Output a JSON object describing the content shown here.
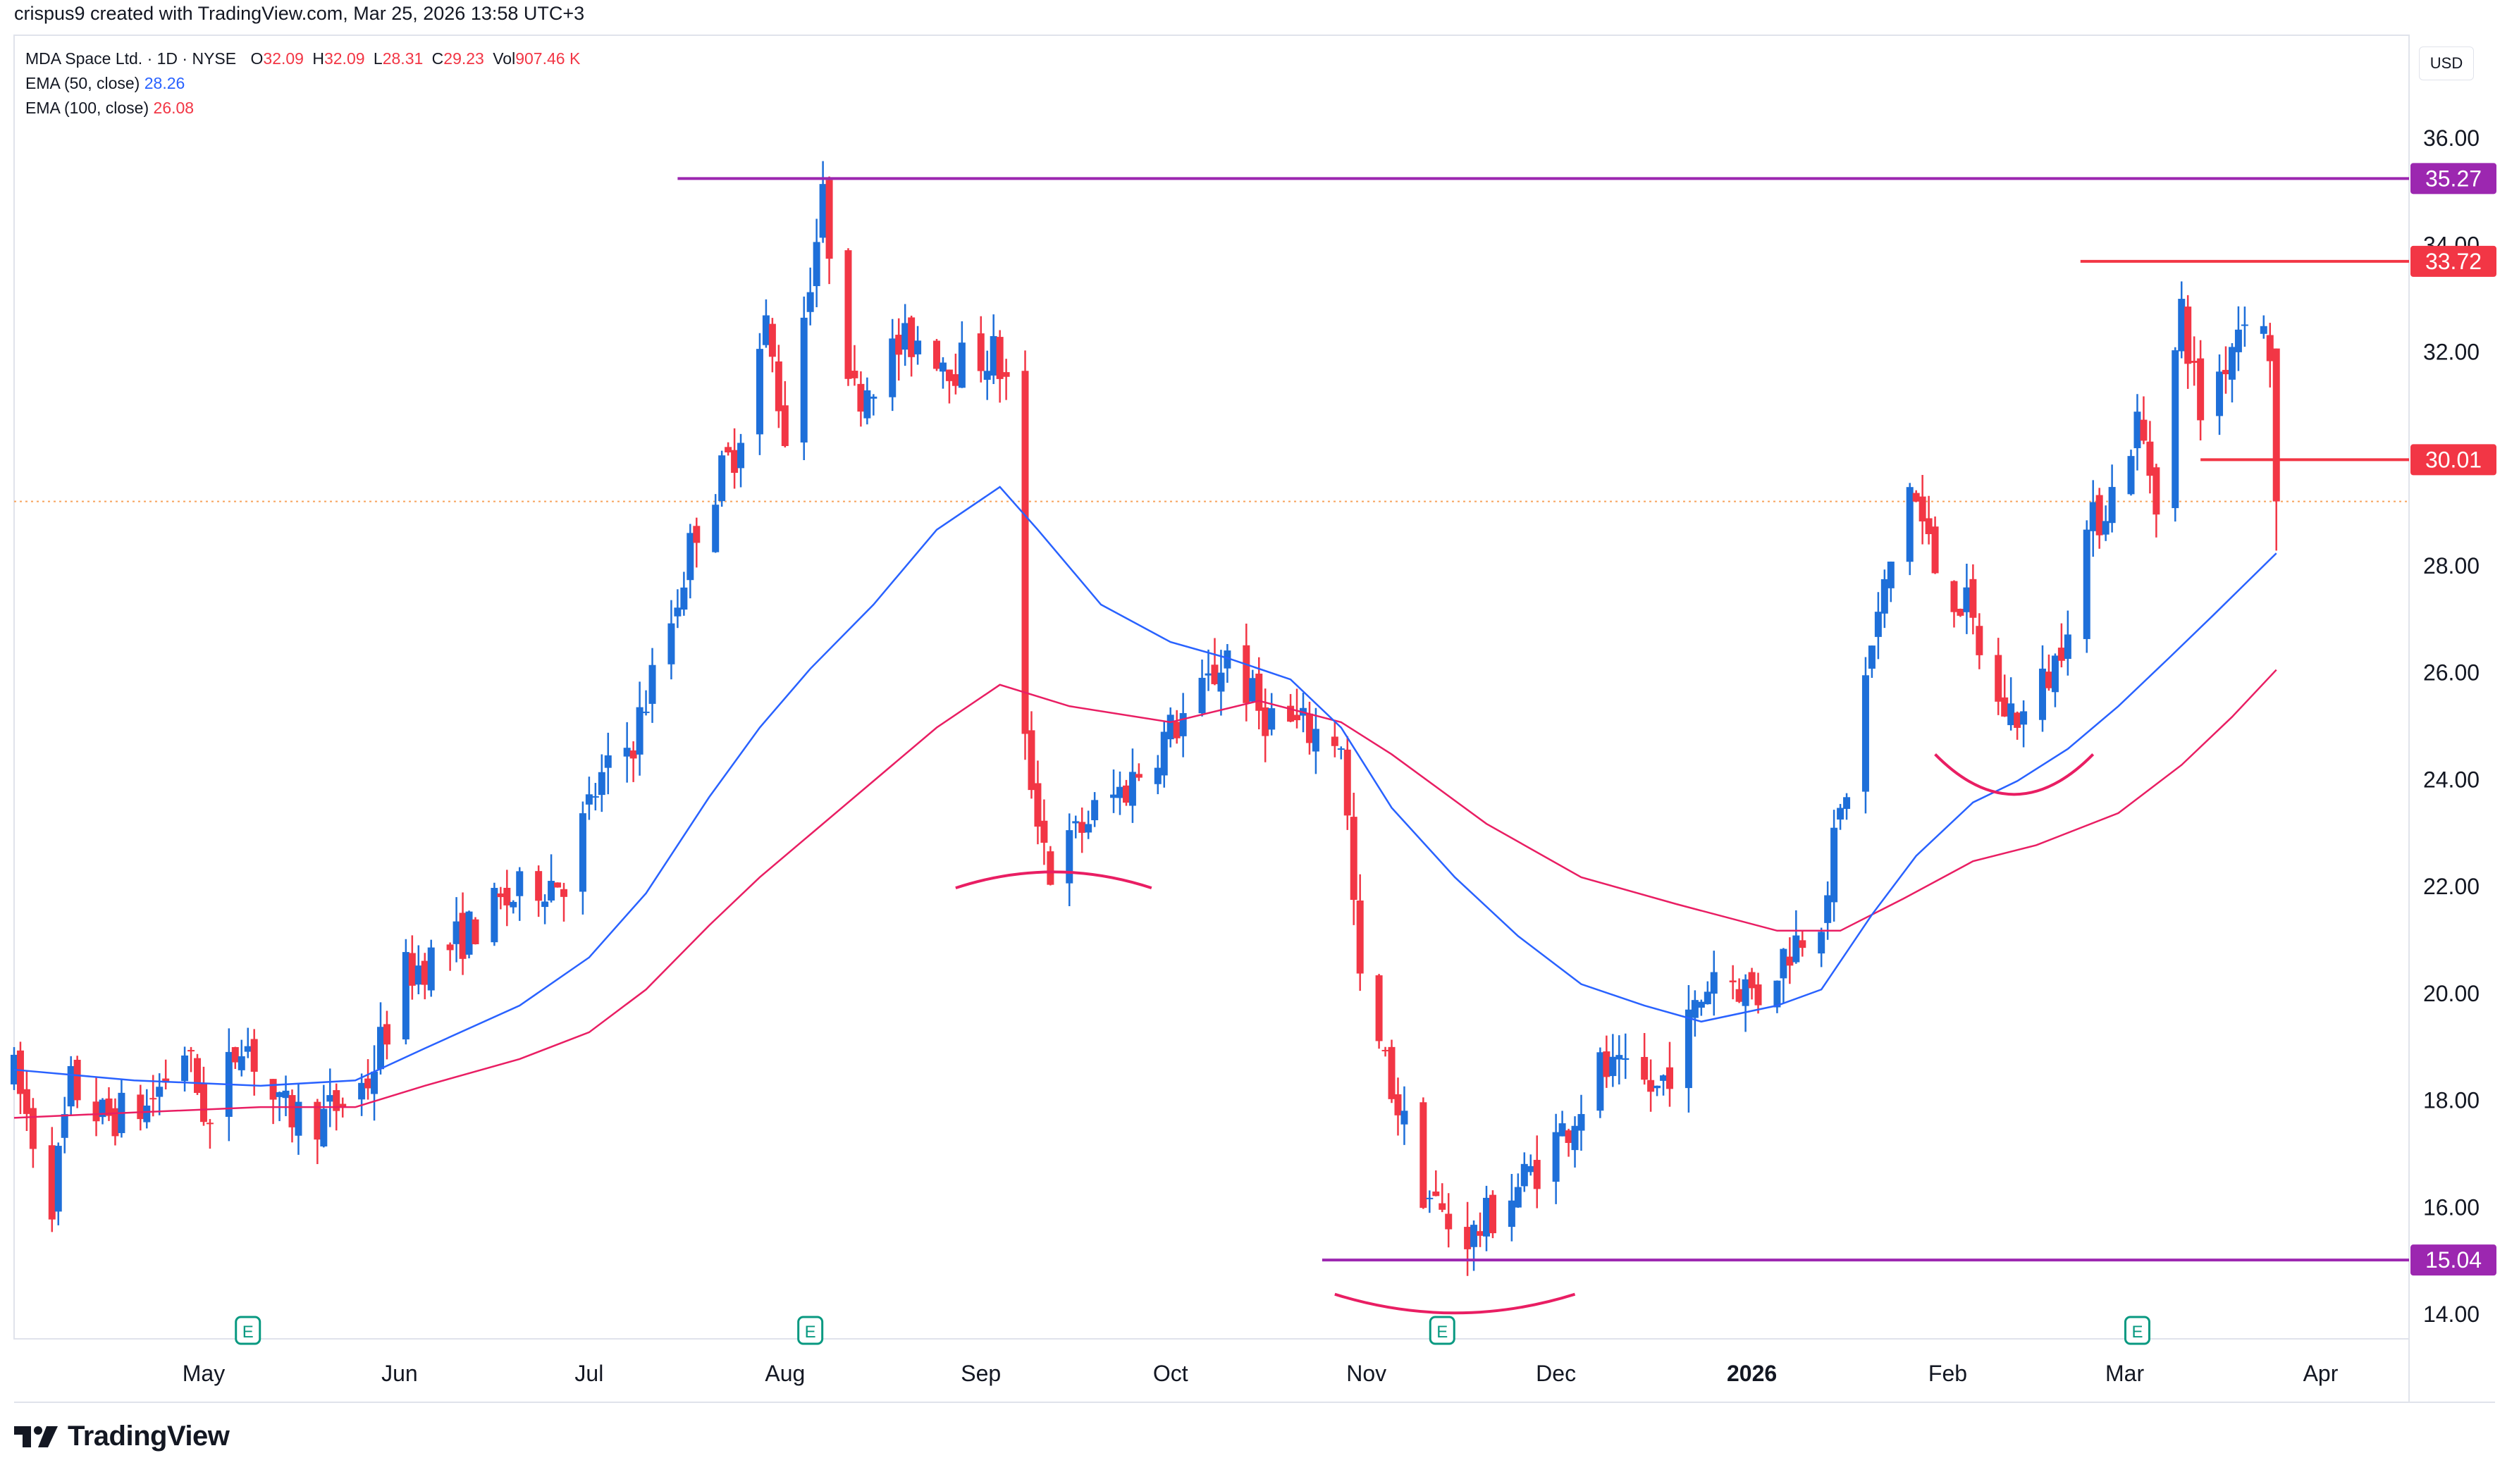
{
  "header": {
    "credit": "crispus9 created with TradingView.com, Mar 25, 2026 13:58 UTC+3",
    "symbol_line": "MDA Space Ltd. · 1D · NYSE",
    "ohlc": [
      {
        "k": "O",
        "v": "32.09"
      },
      {
        "k": "H",
        "v": "32.09"
      },
      {
        "k": "L",
        "v": "28.31"
      },
      {
        "k": "C",
        "v": "29.23"
      },
      {
        "k": "Vol",
        "v": "907.46 K"
      }
    ],
    "ema50_label": "EMA (50, close)",
    "ema50_value": "28.26",
    "ema100_label": "EMA (100, close)",
    "ema100_value": "26.08",
    "currency": "USD"
  },
  "brand": {
    "name": "TradingView"
  },
  "colors": {
    "up": "#1e6fd9",
    "down": "#f23645",
    "ema50": "#2962ff",
    "ema100": "#e91e63",
    "resistance": "#9c27b0",
    "level": "#f23645",
    "last_price": "#f7a35c"
  },
  "chart_data": {
    "type": "candlestick",
    "ylim": [
      13.0,
      37.0
    ],
    "yticks": [
      "14.00",
      "16.00",
      "18.00",
      "20.00",
      "22.00",
      "24.00",
      "26.00",
      "28.00",
      "30.00",
      "32.00",
      "34.00",
      "36.00"
    ],
    "xticks": [
      {
        "label": "May",
        "date": "2025-05-01"
      },
      {
        "label": "Jun",
        "date": "2025-06-01"
      },
      {
        "label": "Jul",
        "date": "2025-07-01"
      },
      {
        "label": "Aug",
        "date": "2025-08-01"
      },
      {
        "label": "Sep",
        "date": "2025-09-01"
      },
      {
        "label": "Oct",
        "date": "2025-10-01"
      },
      {
        "label": "Nov",
        "date": "2025-11-01"
      },
      {
        "label": "Dec",
        "date": "2025-12-01"
      },
      {
        "label": "2026",
        "date": "2026-01-01",
        "bold": true
      },
      {
        "label": "Feb",
        "date": "2026-02-01"
      },
      {
        "label": "Mar",
        "date": "2026-03-01"
      },
      {
        "label": "Apr",
        "date": "2026-04-01"
      }
    ],
    "last_price": 29.23,
    "price_levels": [
      {
        "value": 35.27,
        "label": "35.27",
        "color": "#9c27b0",
        "from": "2025-07-15"
      },
      {
        "value": 33.72,
        "label": "33.72",
        "color": "#f23645",
        "from": "2026-02-22"
      },
      {
        "value": 30.01,
        "label": "30.01",
        "color": "#f23645",
        "from": "2026-03-13"
      },
      {
        "value": 15.04,
        "label": "15.04",
        "color": "#9c27b0",
        "from": "2025-10-25"
      }
    ],
    "earnings_markers": [
      {
        "date": "2025-05-08",
        "label": "E"
      },
      {
        "date": "2025-08-05",
        "label": "E"
      },
      {
        "date": "2025-11-13",
        "label": "E"
      },
      {
        "date": "2026-03-03",
        "label": "E"
      }
    ],
    "arcs": [
      {
        "from": "2025-08-28",
        "to": "2025-09-28",
        "lowest": 22.3,
        "start": 22.0
      },
      {
        "from": "2025-10-27",
        "to": "2025-12-04",
        "lowest": 14.05,
        "start": 14.4
      },
      {
        "from": "2026-01-30",
        "to": "2026-02-24",
        "lowest": 23.75,
        "start": 24.5
      }
    ],
    "ema50": [
      [
        "2025-04-01",
        18.6
      ],
      [
        "2025-04-20",
        18.4
      ],
      [
        "2025-05-10",
        18.3
      ],
      [
        "2025-05-25",
        18.4
      ],
      [
        "2025-06-05",
        19.0
      ],
      [
        "2025-06-20",
        19.8
      ],
      [
        "2025-07-01",
        20.7
      ],
      [
        "2025-07-10",
        21.9
      ],
      [
        "2025-07-20",
        23.7
      ],
      [
        "2025-07-28",
        25.0
      ],
      [
        "2025-08-05",
        26.1
      ],
      [
        "2025-08-15",
        27.3
      ],
      [
        "2025-08-25",
        28.7
      ],
      [
        "2025-09-04",
        29.5
      ],
      [
        "2025-09-10",
        28.7
      ],
      [
        "2025-09-20",
        27.3
      ],
      [
        "2025-10-01",
        26.6
      ],
      [
        "2025-10-10",
        26.3
      ],
      [
        "2025-10-20",
        25.9
      ],
      [
        "2025-10-28",
        25.0
      ],
      [
        "2025-11-05",
        23.5
      ],
      [
        "2025-11-15",
        22.2
      ],
      [
        "2025-11-25",
        21.1
      ],
      [
        "2025-12-05",
        20.2
      ],
      [
        "2025-12-15",
        19.8
      ],
      [
        "2025-12-24",
        19.5
      ],
      [
        "2026-01-05",
        19.8
      ],
      [
        "2026-01-12",
        20.1
      ],
      [
        "2026-01-20",
        21.5
      ],
      [
        "2026-01-27",
        22.6
      ],
      [
        "2026-02-05",
        23.6
      ],
      [
        "2026-02-12",
        24.0
      ],
      [
        "2026-02-20",
        24.6
      ],
      [
        "2026-02-28",
        25.4
      ],
      [
        "2026-03-08",
        26.3
      ],
      [
        "2026-03-15",
        27.1
      ],
      [
        "2026-03-25",
        28.26
      ]
    ],
    "ema100": [
      [
        "2025-04-01",
        17.7
      ],
      [
        "2025-04-20",
        17.8
      ],
      [
        "2025-05-10",
        17.9
      ],
      [
        "2025-05-25",
        17.9
      ],
      [
        "2025-06-05",
        18.3
      ],
      [
        "2025-06-20",
        18.8
      ],
      [
        "2025-07-01",
        19.3
      ],
      [
        "2025-07-10",
        20.1
      ],
      [
        "2025-07-20",
        21.3
      ],
      [
        "2025-07-28",
        22.2
      ],
      [
        "2025-08-05",
        23.0
      ],
      [
        "2025-08-15",
        24.0
      ],
      [
        "2025-08-25",
        25.0
      ],
      [
        "2025-09-04",
        25.8
      ],
      [
        "2025-09-15",
        25.4
      ],
      [
        "2025-10-01",
        25.1
      ],
      [
        "2025-10-15",
        25.5
      ],
      [
        "2025-10-28",
        25.1
      ],
      [
        "2025-11-05",
        24.5
      ],
      [
        "2025-11-20",
        23.2
      ],
      [
        "2025-12-05",
        22.2
      ],
      [
        "2025-12-20",
        21.7
      ],
      [
        "2026-01-05",
        21.2
      ],
      [
        "2026-01-15",
        21.2
      ],
      [
        "2026-01-25",
        21.8
      ],
      [
        "2026-02-05",
        22.5
      ],
      [
        "2026-02-15",
        22.8
      ],
      [
        "2026-02-28",
        23.4
      ],
      [
        "2026-03-10",
        24.3
      ],
      [
        "2026-03-18",
        25.2
      ],
      [
        "2026-03-25",
        26.08
      ]
    ],
    "price_path": [
      [
        "2025-04-01",
        18.5
      ],
      [
        "2025-04-07",
        16.2
      ],
      [
        "2025-04-10",
        18.3
      ],
      [
        "2025-04-15",
        17.7
      ],
      [
        "2025-04-22",
        17.9
      ],
      [
        "2025-04-28",
        19.0
      ],
      [
        "2025-05-02",
        17.5
      ],
      [
        "2025-05-07",
        19.3
      ],
      [
        "2025-05-13",
        17.8
      ],
      [
        "2025-05-20",
        17.7
      ],
      [
        "2025-05-27",
        18.4
      ],
      [
        "2025-06-02",
        20.4
      ],
      [
        "2025-06-09",
        20.9
      ],
      [
        "2025-06-16",
        21.6
      ],
      [
        "2025-06-23",
        22.1
      ],
      [
        "2025-06-27",
        22.2
      ],
      [
        "2025-07-02",
        23.8
      ],
      [
        "2025-07-08",
        24.8
      ],
      [
        "2025-07-14",
        27.0
      ],
      [
        "2025-07-18",
        28.8
      ],
      [
        "2025-07-24",
        30.2
      ],
      [
        "2025-07-29",
        32.5
      ],
      [
        "2025-08-01",
        30.5
      ],
      [
        "2025-08-05",
        33.5
      ],
      [
        "2025-08-07",
        34.8
      ],
      [
        "2025-08-12",
        31.2
      ],
      [
        "2025-08-18",
        32.0
      ],
      [
        "2025-08-22",
        32.3
      ],
      [
        "2025-08-28",
        31.8
      ],
      [
        "2025-09-03",
        32.0
      ],
      [
        "2025-09-05",
        31.4
      ],
      [
        "2025-09-08",
        24.6
      ],
      [
        "2025-09-12",
        22.3
      ],
      [
        "2025-09-18",
        23.3
      ],
      [
        "2025-09-24",
        23.9
      ],
      [
        "2025-09-30",
        24.8
      ],
      [
        "2025-10-06",
        25.6
      ],
      [
        "2025-10-10",
        26.4
      ],
      [
        "2025-10-15",
        25.3
      ],
      [
        "2025-10-21",
        25.0
      ],
      [
        "2025-10-28",
        24.8
      ],
      [
        "2025-10-31",
        20.1
      ],
      [
        "2025-11-05",
        18.3
      ],
      [
        "2025-11-10",
        16.4
      ],
      [
        "2025-11-14",
        15.7
      ],
      [
        "2025-11-18",
        15.5
      ],
      [
        "2025-11-24",
        16.3
      ],
      [
        "2025-11-28",
        16.8
      ],
      [
        "2025-12-03",
        17.6
      ],
      [
        "2025-12-08",
        18.6
      ],
      [
        "2025-12-12",
        18.4
      ],
      [
        "2025-12-17",
        18.2
      ],
      [
        "2025-12-22",
        19.4
      ],
      [
        "2025-12-26",
        20.5
      ],
      [
        "2026-01-02",
        20.0
      ],
      [
        "2026-01-07",
        20.9
      ],
      [
        "2026-01-12",
        21.6
      ],
      [
        "2026-01-16",
        23.9
      ],
      [
        "2026-01-20",
        26.5
      ],
      [
        "2026-01-26",
        29.6
      ],
      [
        "2026-01-30",
        28.0
      ],
      [
        "2026-02-04",
        27.2
      ],
      [
        "2026-02-09",
        25.4
      ],
      [
        "2026-02-13",
        25.2
      ],
      [
        "2026-02-18",
        26.2
      ],
      [
        "2026-02-23",
        28.6
      ],
      [
        "2026-02-27",
        29.4
      ],
      [
        "2026-03-03",
        30.7
      ],
      [
        "2026-03-06",
        29.4
      ],
      [
        "2026-03-10",
        32.8
      ],
      [
        "2026-03-13",
        30.9
      ],
      [
        "2026-03-17",
        31.9
      ],
      [
        "2026-03-20",
        32.9
      ],
      [
        "2026-03-24",
        32.1
      ],
      [
        "2026-03-25",
        29.23
      ]
    ]
  }
}
